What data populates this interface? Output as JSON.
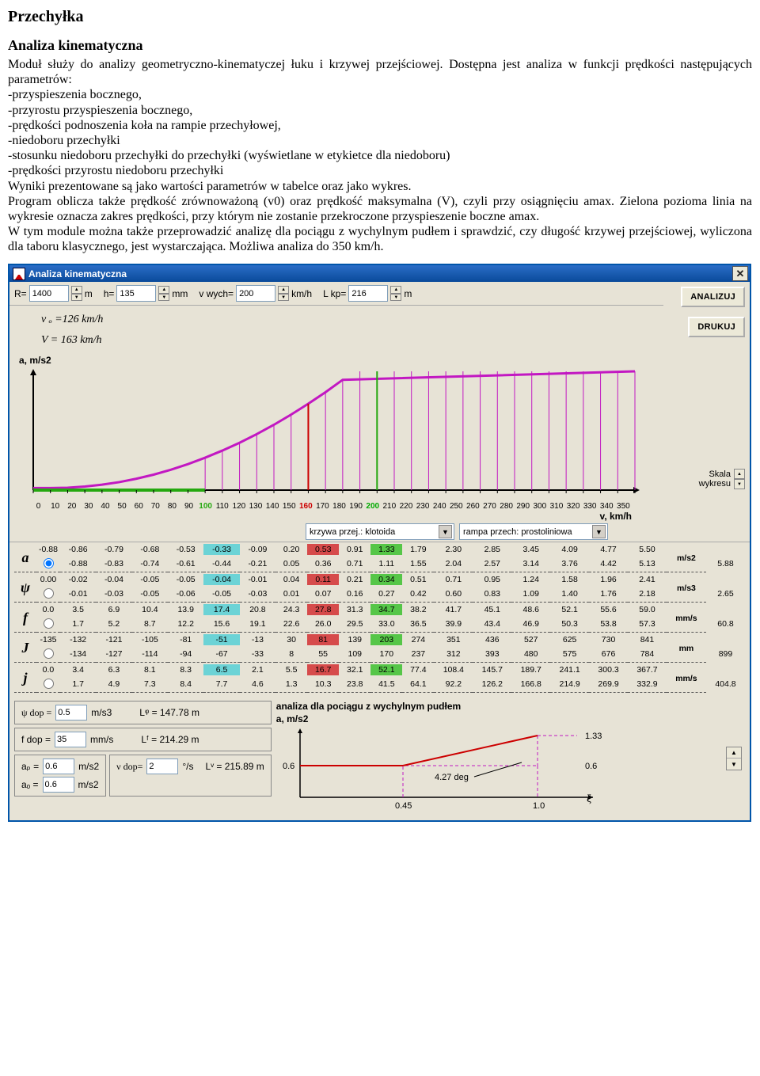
{
  "doc": {
    "title": "Przechyłka",
    "subtitle": "Analiza kinematyczna",
    "p1": "Moduł służy do analizy geometryczno-kinematyczej łuku i krzywej przejściowej. Dostępna jest analiza w funkcji prędkości następujących parametrów:",
    "bullets": [
      "-przyspieszenia bocznego,",
      "-przyrostu przyspieszenia bocznego,",
      "-prędkości podnoszenia koła na rampie przechyłowej,",
      "-niedoboru przechyłki",
      "-stosunku niedoboru przechyłki do przechyłki (wyświetlane w etykietce dla niedoboru)",
      "-prędkości przyrostu niedoboru przechyłki"
    ],
    "p2": "Wyniki prezentowane są jako wartości parametrów w tabelce oraz jako wykres.",
    "p3": "Program oblicza także prędkość zrównoważoną (v0) oraz prędkość maksymalna (V), czyli przy osiągnięciu amax. Zielona pozioma linia na wykresie oznacza zakres prędkości, przy którym nie zostanie przekroczone przyspieszenie boczne amax.",
    "p4": "W tym module można także przeprowadzić analizę dla pociągu z wychylnym pudłem i sprawdzić, czy długość krzywej przejściowej, wyliczona dla taboru klasycznego, jest wystarczająca. Możliwa analiza do 350 km/h."
  },
  "window": {
    "title": "Analiza kinematyczna"
  },
  "inputs": {
    "R_label": "R=",
    "R_value": "1400",
    "R_unit": "m",
    "h_label": "h=",
    "h_value": "135",
    "h_unit": "mm",
    "vwych_label": "v wych=",
    "vwych_value": "200",
    "vwych_unit": "km/h",
    "Lkp_label": "L kp=",
    "Lkp_value": "216",
    "Lkp_unit": "m"
  },
  "buttons": {
    "analizuj": "ANALIZUJ",
    "drukuj": "DRUKUJ"
  },
  "chart": {
    "v0_line": "v ₒ =126 km/h",
    "V_line": "V = 163 km/h",
    "y_label": "a, m/s2",
    "x_label": "v, km/h",
    "skala_label": "Skala\nwykresu",
    "x_ticks": [
      "0",
      "10",
      "20",
      "30",
      "40",
      "50",
      "60",
      "70",
      "80",
      "90",
      "100",
      "110",
      "120",
      "130",
      "140",
      "150",
      "160",
      "170",
      "180",
      "190",
      "200",
      "210",
      "220",
      "230",
      "240",
      "250",
      "260",
      "270",
      "280",
      "290",
      "300",
      "310",
      "320",
      "330",
      "340",
      "350"
    ],
    "curve_color": "#c218c2",
    "hatch_color": "#c218c2",
    "green_color": "#25a80f",
    "axis_color": "#000000",
    "bg_color": "#e7e3d6",
    "y_range": [
      -1,
      6
    ],
    "x_range": [
      0,
      350
    ],
    "parabola": [
      [
        0,
        -0.88
      ],
      [
        10,
        -0.88
      ],
      [
        20,
        -0.86
      ],
      [
        30,
        -0.79
      ],
      [
        40,
        -0.68
      ],
      [
        50,
        -0.53
      ],
      [
        60,
        -0.33
      ],
      [
        70,
        -0.09
      ],
      [
        80,
        0.2
      ],
      [
        90,
        0.53
      ],
      [
        100,
        0.91
      ],
      [
        110,
        1.33
      ],
      [
        120,
        1.79
      ],
      [
        130,
        2.3
      ],
      [
        140,
        2.85
      ],
      [
        150,
        3.45
      ],
      [
        160,
        4.09
      ],
      [
        170,
        4.77
      ],
      [
        180,
        5.5
      ]
    ],
    "green_x": 200,
    "red_x": 160,
    "highlight_x": 100
  },
  "dropdowns": {
    "krzywa": "krzywa przej.: klotoida",
    "rampa": "rampa przech: prostoliniowa"
  },
  "table": {
    "rows": [
      {
        "head": "a",
        "unit": "m/s2",
        "selected": true,
        "line1": [
          "-0.88",
          "-0.86",
          "-0.79",
          "-0.68",
          "-0.53",
          "-0.33",
          "-0.09",
          "0.20",
          "0.53",
          "0.91",
          "1.33",
          "1.79",
          "2.30",
          "2.85",
          "3.45",
          "4.09",
          "4.77",
          "5.50"
        ],
        "line1_hl": {
          "5": "cyan",
          "8": "red",
          "10": "green"
        },
        "line2": [
          "-0.88",
          "-0.83",
          "-0.74",
          "-0.61",
          "-0.44",
          "-0.21",
          "0.05",
          "0.36",
          "0.71",
          "1.11",
          "1.55",
          "2.04",
          "2.57",
          "3.14",
          "3.76",
          "4.42",
          "5.13",
          "5.88"
        ]
      },
      {
        "head": "ψ",
        "unit": "m/s3",
        "selected": false,
        "line1": [
          "0.00",
          "-0.02",
          "-0.04",
          "-0.05",
          "-0.05",
          "-0.04",
          "-0.01",
          "0.04",
          "0.11",
          "0.21",
          "0.34",
          "0.51",
          "0.71",
          "0.95",
          "1.24",
          "1.58",
          "1.96",
          "2.41"
        ],
        "line1_hl": {
          "5": "cyan",
          "8": "red",
          "10": "green"
        },
        "line2": [
          "-0.01",
          "-0.03",
          "-0.05",
          "-0.06",
          "-0.05",
          "-0.03",
          "0.01",
          "0.07",
          "0.16",
          "0.27",
          "0.42",
          "0.60",
          "0.83",
          "1.09",
          "1.40",
          "1.76",
          "2.18",
          "2.65"
        ]
      },
      {
        "head": "f",
        "unit": "mm/s",
        "selected": false,
        "line1": [
          "0.0",
          "3.5",
          "6.9",
          "10.4",
          "13.9",
          "17.4",
          "20.8",
          "24.3",
          "27.8",
          "31.3",
          "34.7",
          "38.2",
          "41.7",
          "45.1",
          "48.6",
          "52.1",
          "55.6",
          "59.0"
        ],
        "line1_hl": {
          "5": "cyan",
          "8": "red",
          "10": "green"
        },
        "line2": [
          "1.7",
          "5.2",
          "8.7",
          "12.2",
          "15.6",
          "19.1",
          "22.6",
          "26.0",
          "29.5",
          "33.0",
          "36.5",
          "39.9",
          "43.4",
          "46.9",
          "50.3",
          "53.8",
          "57.3",
          "60.8"
        ]
      },
      {
        "head": "J",
        "unit": "mm",
        "selected": false,
        "line1": [
          "-135",
          "-132",
          "-121",
          "-105",
          "-81",
          "-51",
          "-13",
          "30",
          "81",
          "139",
          "203",
          "274",
          "351",
          "436",
          "527",
          "625",
          "730",
          "841"
        ],
        "line1_hl": {
          "5": "cyan",
          "8": "red",
          "10": "green"
        },
        "line2": [
          "-134",
          "-127",
          "-114",
          "-94",
          "-67",
          "-33",
          "8",
          "55",
          "109",
          "170",
          "237",
          "312",
          "393",
          "480",
          "575",
          "676",
          "784",
          "899"
        ]
      },
      {
        "head": "j",
        "unit": "mm/s",
        "selected": false,
        "line1": [
          "0.0",
          "3.4",
          "6.3",
          "8.1",
          "8.3",
          "6.5",
          "2.1",
          "5.5",
          "16.7",
          "32.1",
          "52.1",
          "77.4",
          "108.4",
          "145.7",
          "189.7",
          "241.1",
          "300.3",
          "367.7"
        ],
        "line1_hl": {
          "5": "cyan",
          "8": "red",
          "10": "green"
        },
        "line2": [
          "1.7",
          "4.9",
          "7.3",
          "8.4",
          "7.7",
          "4.6",
          "1.3",
          "10.3",
          "23.8",
          "41.5",
          "64.1",
          "92.2",
          "126.2",
          "166.8",
          "214.9",
          "269.9",
          "332.9",
          "404.8"
        ]
      }
    ]
  },
  "params": {
    "psi_dop_label": "ψ dop =",
    "psi_dop_val": "0.5",
    "psi_dop_unit": "m/s3",
    "L_psi": "Lᵠ = 147.78 m",
    "f_dop_label": "f dop =",
    "f_dop_val": "35",
    "f_dop_unit": "mm/s",
    "L_f": "Lᶠ = 214.29 m",
    "ap_label": "aₚ =",
    "ap_val": "0.6",
    "ap_unit": "m/s2",
    "ao_label": "aₒ =",
    "ao_val": "0.6",
    "ao_unit": "m/s2",
    "vdop_label": "ν dop=",
    "vdop_val": "2",
    "vdop_unit": "°/s",
    "L_v": "Lᵛ = 215.89 m"
  },
  "tilt": {
    "title": "analiza dla pociągu z wychylnym pudłem",
    "sub": "a, m/s2",
    "top_val": "1.33",
    "mid_val": "0.6",
    "deg": "4.27 deg",
    "zeta": "ζ",
    "x_left": "0.45",
    "x_right": "1.0",
    "y_left": "0.6"
  }
}
